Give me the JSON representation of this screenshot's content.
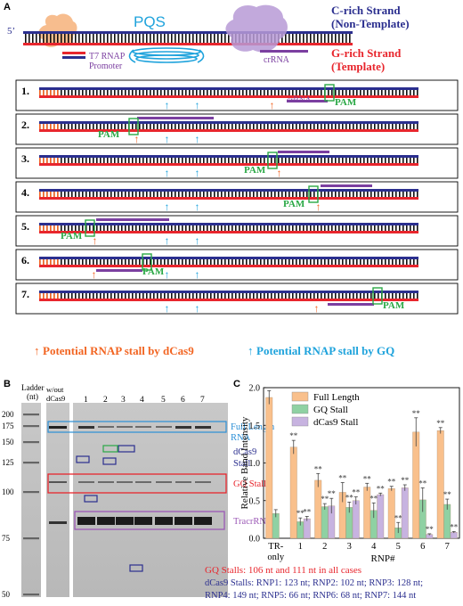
{
  "panel_a": {
    "label": "A",
    "five_prime": "5’",
    "pqs": "PQS",
    "c_strand_line1": "C-rich Strand",
    "c_strand_line2": "(Non-Template)",
    "g_strand_line1": "G-rich Strand",
    "g_strand_line2": "(Template)",
    "t7_line1": "T7 RNAP",
    "t7_line2": "Promoter",
    "crrna": "crRNA",
    "rows": [
      {
        "num": "1.",
        "pam": "PAM",
        "crrna": "crRNA"
      },
      {
        "num": "2.",
        "pam": "PAM"
      },
      {
        "num": "3.",
        "pam": "PAM"
      },
      {
        "num": "4.",
        "pam": "PAM"
      },
      {
        "num": "5.",
        "pam": "PAM"
      },
      {
        "num": "6.",
        "pam": "PAM"
      },
      {
        "num": "7.",
        "pam": "PAM"
      }
    ],
    "legend_dcas9": "Potential RNAP stall by dCas9",
    "legend_gq": "Potential RNAP stall by GQ",
    "colors": {
      "blue_strand": "#2b2f8f",
      "red_strand": "#e8262d",
      "orange": "#f26522",
      "cyan": "#1fa3dc",
      "purple": "#7b3fa0",
      "green": "#2aa845"
    }
  },
  "panel_b": {
    "label": "B",
    "ladder_title_1": "Ladder",
    "ladder_title_2": "(nt)",
    "without_1": "w/out",
    "without_2": "dCas9",
    "lanes": [
      "1",
      "2",
      "3",
      "4",
      "5",
      "6",
      "7"
    ],
    "ladder_marks": [
      "200",
      "175",
      "150",
      "125",
      "100",
      "75",
      "50"
    ],
    "full_length_1": "Full Length",
    "full_length_2": "RNA",
    "dcas9_stall_1": "dCas9",
    "dcas9_stall_2": "Stall",
    "gq_stall": "GQ Stall",
    "tracr": "TracrRNA",
    "note_gq": "GQ Stalls: 106 nt and 111 nt in all cases",
    "note_dcas9_1": "dCas9 Stalls: RNP1: 123 nt; RNP2: 102 nt; RNP3: 128 nt;",
    "note_dcas9_2": "RNP4: 149 nt; RNP5: 66 nt; RNP6: 68 nt; RNP7: 144 nt"
  },
  "chart_data": {
    "type": "bar",
    "title": "",
    "label": "C",
    "xlabel": "RNP#",
    "ylabel": "Relative Band Intensity",
    "ylim": [
      0,
      2.0
    ],
    "yticks": [
      "0.0",
      "0.5",
      "1.0",
      "1.5",
      "2.0"
    ],
    "categories": [
      "TR-only",
      "1",
      "2",
      "3",
      "4",
      "5",
      "6",
      "7"
    ],
    "category_lines": [
      [
        "TR-",
        "only"
      ],
      [
        "1"
      ],
      [
        "2"
      ],
      [
        "3"
      ],
      [
        "4"
      ],
      [
        "5"
      ],
      [
        "6"
      ],
      [
        "7"
      ]
    ],
    "legend_position": "top-left",
    "series": [
      {
        "name": "Full Length",
        "color": "#f9c08c",
        "values": [
          1.87,
          1.21,
          0.77,
          0.61,
          0.68,
          0.66,
          1.41,
          1.43
        ],
        "errors": [
          0.09,
          0.09,
          0.09,
          0.13,
          0.05,
          0.03,
          0.19,
          0.04
        ],
        "marks": [
          "",
          "**",
          "**",
          "**",
          "**",
          "**",
          "**",
          "**"
        ]
      },
      {
        "name": "GQ Stall",
        "color": "#8fd1a3",
        "values": [
          0.33,
          0.22,
          0.42,
          0.41,
          0.37,
          0.14,
          0.51,
          0.45
        ],
        "errors": [
          0.05,
          0.05,
          0.04,
          0.07,
          0.1,
          0.07,
          0.16,
          0.07
        ],
        "marks": [
          "",
          "**",
          "**",
          "**",
          "**",
          "**",
          "**",
          "**"
        ]
      },
      {
        "name": "dCas9 Stall",
        "color": "#c7b3e0",
        "values": [
          null,
          0.26,
          0.43,
          0.5,
          0.58,
          0.67,
          0.05,
          0.08
        ],
        "errors": [
          0,
          0.03,
          0.1,
          0.05,
          0.02,
          0.04,
          0.01,
          0.01
        ],
        "marks": [
          "",
          "**",
          "**",
          "**",
          "**",
          "**",
          "**",
          "**"
        ]
      }
    ]
  }
}
